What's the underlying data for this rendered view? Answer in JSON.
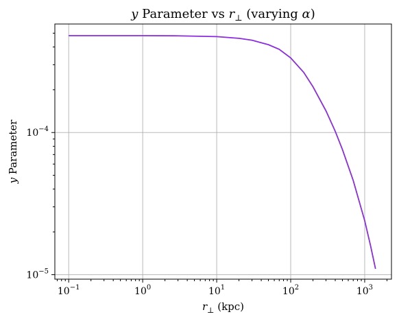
{
  "chart_data": {
    "type": "line",
    "title": "y Parameter vs r⊥ (varying α)",
    "title_parts": {
      "y": "y",
      "mid": " Parameter vs ",
      "r": "r",
      "perp": "⊥",
      "rest": " (varying ",
      "alpha": "α",
      "close": ")"
    },
    "xlabel": "r⊥ (kpc)",
    "xlabel_parts": {
      "r": "r",
      "perp": "⊥",
      "rest": " (kpc)"
    },
    "ylabel": "y Parameter",
    "ylabel_parts": {
      "y": "y",
      "rest": " Parameter"
    },
    "xscale": "log",
    "yscale": "log",
    "xlim": [
      0.065,
      2300
    ],
    "ylim": [
      9.3e-06,
      0.00058
    ],
    "grid": true,
    "x_ticks": [
      {
        "value": 0.1,
        "base": "10",
        "exp": "−1"
      },
      {
        "value": 1,
        "base": "10",
        "exp": "0"
      },
      {
        "value": 10,
        "base": "10",
        "exp": "1"
      },
      {
        "value": 100,
        "base": "10",
        "exp": "2"
      },
      {
        "value": 1000,
        "base": "10",
        "exp": "3"
      }
    ],
    "y_ticks": [
      {
        "value": 1e-05,
        "base": "10",
        "exp": "−5"
      },
      {
        "value": 0.0001,
        "base": "10",
        "exp": "−4"
      }
    ],
    "series": [
      {
        "color": "#8a2be2",
        "x": [
          0.1,
          0.3,
          1,
          3,
          10,
          20,
          30,
          50,
          70,
          100,
          150,
          200,
          300,
          400,
          500,
          700,
          1000,
          1200,
          1400
        ],
        "y": [
          0.00048,
          0.00048,
          0.00048,
          0.000479,
          0.000473,
          0.00046,
          0.000446,
          0.000415,
          0.000385,
          0.000335,
          0.000265,
          0.00021,
          0.000142,
          0.000102,
          7.6e-05,
          4.6e-05,
          2.4e-05,
          1.6e-05,
          1.1e-05
        ]
      }
    ]
  }
}
